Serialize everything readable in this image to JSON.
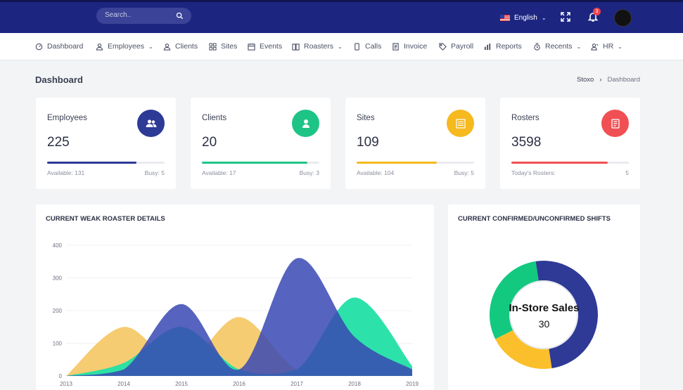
{
  "topbar": {
    "search_placeholder": "Search..",
    "language": "English",
    "notification_count": "3"
  },
  "nav": [
    {
      "label": "Dashboard",
      "icon": "dashboard-icon"
    },
    {
      "label": "Employees",
      "icon": "user-icon",
      "dropdown": true
    },
    {
      "label": "Clients",
      "icon": "client-icon"
    },
    {
      "label": "Sites",
      "icon": "grid-icon"
    },
    {
      "label": "Events",
      "icon": "calendar-icon"
    },
    {
      "label": "Roasters",
      "icon": "book-icon",
      "dropdown": true
    },
    {
      "label": "Calls",
      "icon": "phone-icon"
    },
    {
      "label": "Invoice",
      "icon": "invoice-icon"
    },
    {
      "label": "Payroll",
      "icon": "tag-icon"
    },
    {
      "label": "Reports",
      "icon": "bar-chart-icon"
    },
    {
      "label": "Recents",
      "icon": "clock-icon",
      "dropdown": true
    },
    {
      "label": "HR",
      "icon": "hr-icon",
      "dropdown": true
    }
  ],
  "page": {
    "title": "Dashboard"
  },
  "breadcrumb": {
    "root": "Stoxo",
    "sep": "›",
    "current": "Dashboard"
  },
  "cards": [
    {
      "label": "Employees",
      "value": "225",
      "progress": 0.76,
      "color": "#2d3a96",
      "foot_left": "Available: 131",
      "foot_right": "Busy: 5",
      "icon": "users-icon"
    },
    {
      "label": "Clients",
      "value": "20",
      "progress": 0.9,
      "color": "#1ec486",
      "foot_left": "Available: 17",
      "foot_right": "Busy: 3",
      "icon": "client-icon"
    },
    {
      "label": "Sites",
      "value": "109",
      "progress": 0.68,
      "color": "#f6b91e",
      "foot_left": "Available: 104",
      "foot_right": "Busy: 5",
      "icon": "building-icon"
    },
    {
      "label": "Rosters",
      "value": "3598",
      "progress": 0.82,
      "color": "#f05053",
      "foot_left": "Today's Rosters:",
      "foot_right": "5",
      "icon": "notebook-icon"
    }
  ],
  "area_panel": {
    "title": "CURRENT WEAK ROASTER DETAILS"
  },
  "donut_panel": {
    "title": "CURRENT CONFIRMED/UNCONFIRMED SHIFTS",
    "center_label": "In-Store Sales",
    "center_value": "30"
  },
  "chart_data": [
    {
      "type": "area",
      "x": [
        "2013",
        "2014",
        "2015",
        "2016",
        "2017",
        "2018",
        "2019"
      ],
      "y_ticks": [
        0,
        100,
        200,
        300,
        400
      ],
      "ylim": [
        0,
        400
      ],
      "series": [
        {
          "values": [
            0,
            150,
            30,
            180,
            20,
            20,
            20
          ],
          "color": "#f5c96a"
        },
        {
          "values": [
            0,
            40,
            150,
            20,
            20,
            240,
            30
          ],
          "color": "#22e0a5"
        },
        {
          "values": [
            0,
            20,
            220,
            20,
            360,
            120,
            20
          ],
          "color": "#3848b4"
        }
      ]
    },
    {
      "type": "pie",
      "slices": [
        {
          "value": 50,
          "color": "#2e3a96"
        },
        {
          "value": 20,
          "color": "#fbbf2b"
        },
        {
          "value": 30,
          "color": "#13c980"
        }
      ]
    }
  ]
}
